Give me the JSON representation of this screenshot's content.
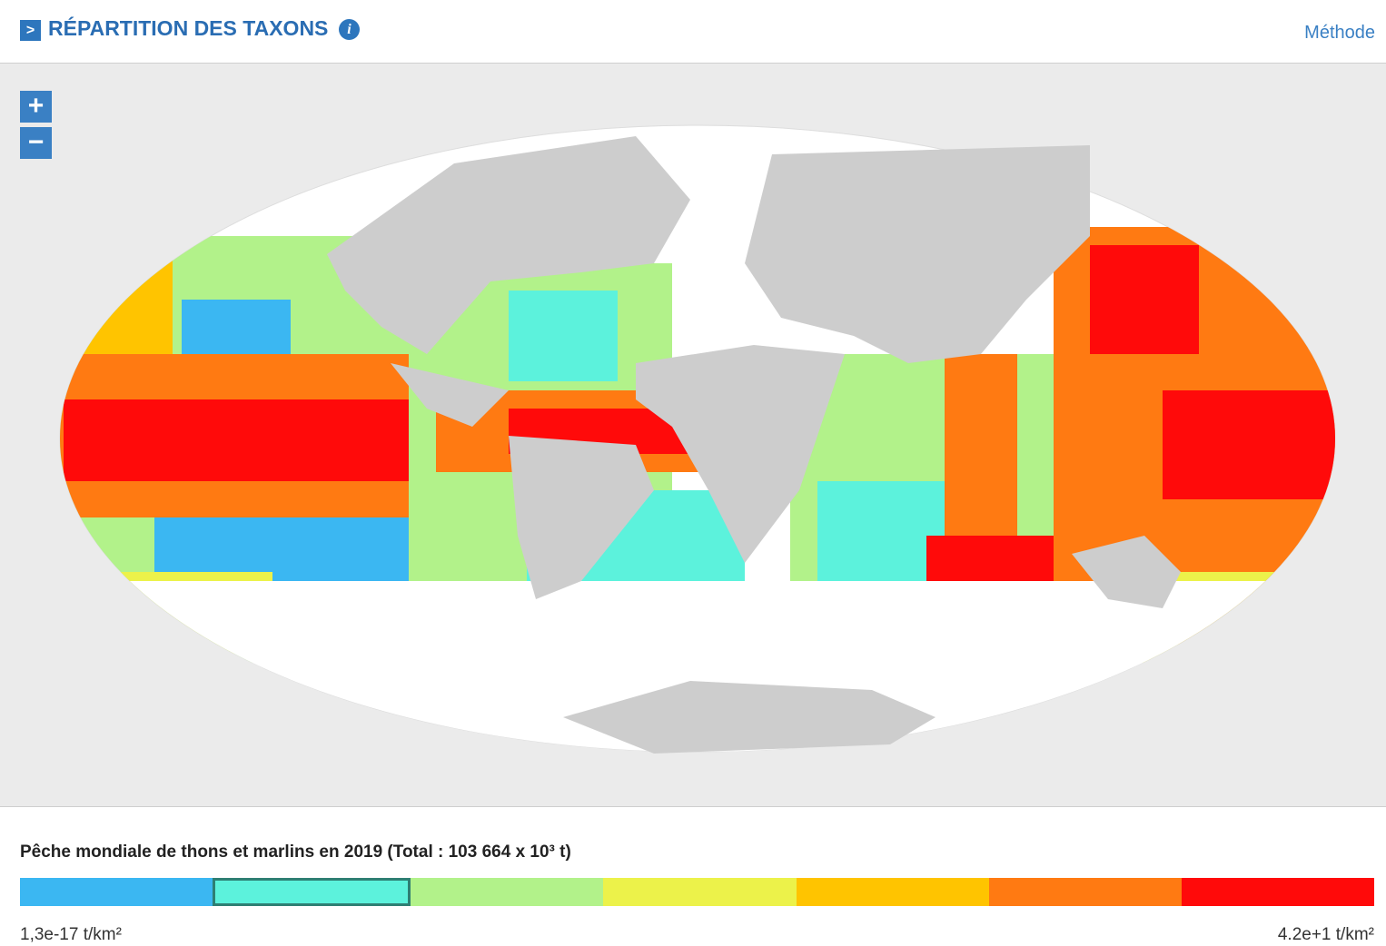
{
  "header": {
    "title": "RÉPARTITION DES TAXONS",
    "link": "Méthode"
  },
  "zoom": {
    "in": "+",
    "out": "−"
  },
  "legend": {
    "title": "Pêche mondiale de thons et marlins en 2019 (Total : 103 664 x 10³ t)",
    "colors": [
      "#3bb7f2",
      "#5cf2dc",
      "#b2f28a",
      "#ecf24a",
      "#ffc400",
      "#ff7a12",
      "#ff0a0a"
    ],
    "selected": 1,
    "min_label": "1,3e-17 t/km²",
    "max_label": "4.2e+1 t/km²"
  }
}
